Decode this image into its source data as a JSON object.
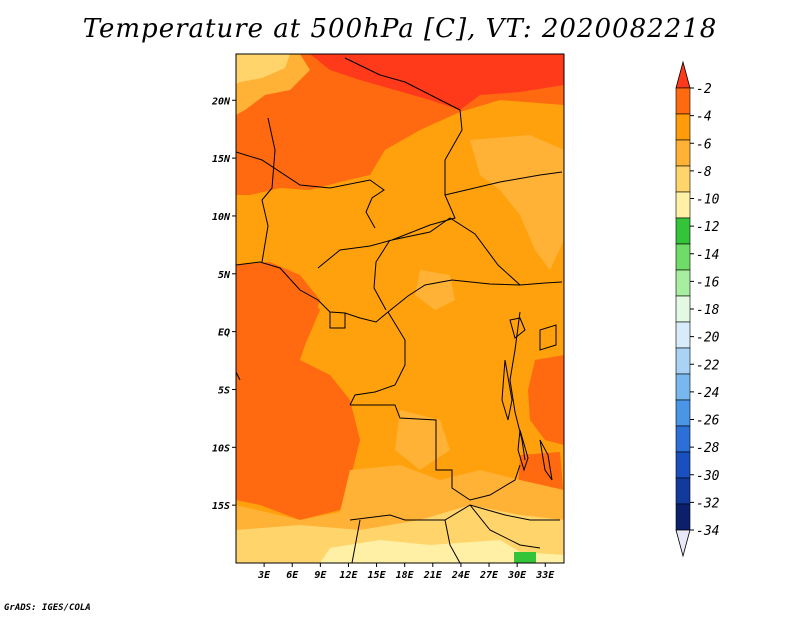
{
  "title": "Temperature at 500hPa [C], VT: 2020082218",
  "credit": "GrADS: IGES/COLA",
  "map": {
    "lon_range": [
      0,
      35
    ],
    "lat_range": [
      -20,
      24
    ],
    "x_ticks": [
      "3E",
      "6E",
      "9E",
      "12E",
      "15E",
      "18E",
      "21E",
      "24E",
      "27E",
      "30E",
      "33E"
    ],
    "x_tick_values": [
      3,
      6,
      9,
      12,
      15,
      18,
      21,
      24,
      27,
      30,
      33
    ],
    "y_ticks": [
      "20N",
      "15N",
      "10N",
      "5N",
      "EQ",
      "5S",
      "10S",
      "15S"
    ],
    "y_tick_values": [
      20,
      15,
      10,
      5,
      0,
      -5,
      -10,
      -15
    ]
  },
  "colorbar": {
    "labels": [
      "-2",
      "-4",
      "-6",
      "-8",
      "-10",
      "-12",
      "-14",
      "-16",
      "-18",
      "-20",
      "-22",
      "-24",
      "-26",
      "-28",
      "-30",
      "-32",
      "-34"
    ],
    "colors": [
      "#ff3a1a",
      "#ff6a10",
      "#ff9c0c",
      "#ffb235",
      "#ffd56b",
      "#fff0a6",
      "#33c43a",
      "#6fdc6a",
      "#a8eea0",
      "#e3f9e3",
      "#d7ebfb",
      "#a9d2f5",
      "#78b8ee",
      "#4a95e6",
      "#2c6fd6",
      "#1a4fbf",
      "#123a9d",
      "#0c1f6b"
    ],
    "top_color": "#ff3a1a",
    "bottom_color": "#e8e8f8"
  },
  "field": {
    "background": "#ffa10d",
    "colors": {
      "warm": "#ff6a10",
      "warmer": "#ff3a1a",
      "mid": "#ffa10d",
      "cool": "#ffb235",
      "cooler": "#ffd56b",
      "coolest": "#fff0a6",
      "green": "#33c43a"
    }
  }
}
